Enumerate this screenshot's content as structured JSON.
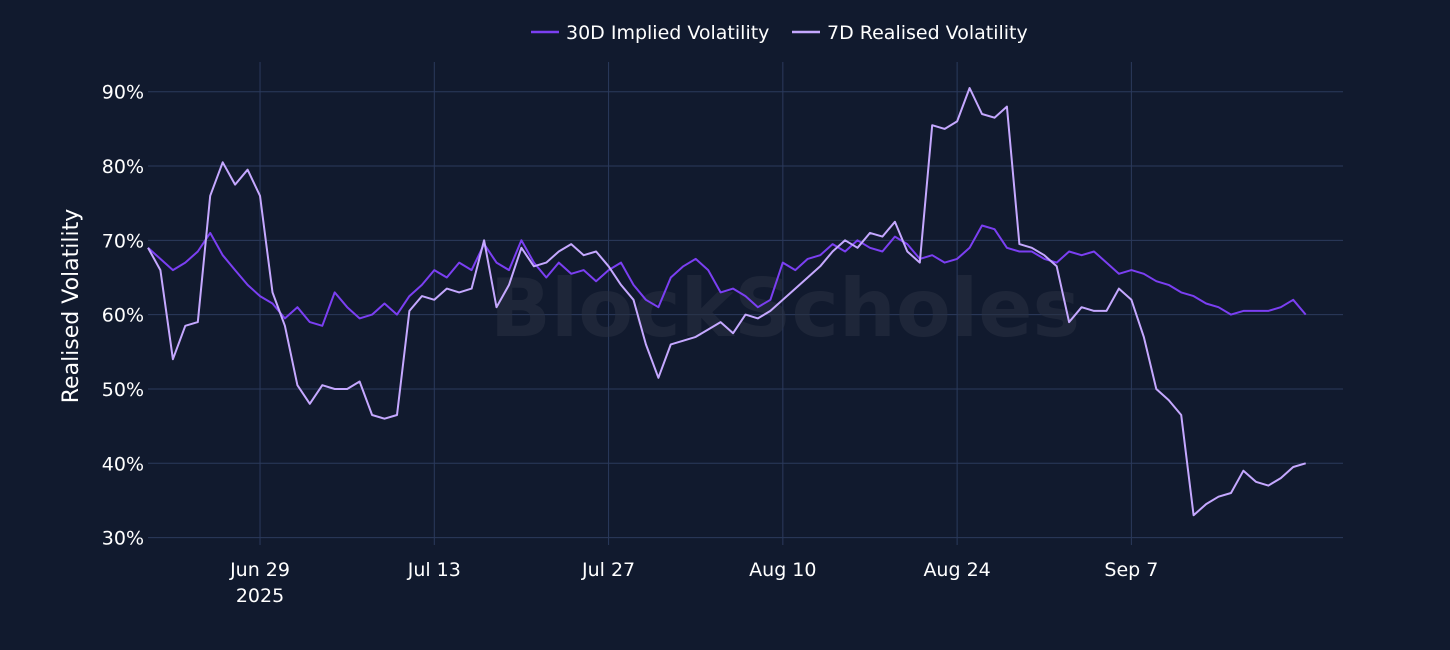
{
  "chart_data": {
    "type": "line",
    "ylabel": "Realised Volatility",
    "y_tick_labels": [
      "30%",
      "40%",
      "50%",
      "60%",
      "70%",
      "80%",
      "90%"
    ],
    "y_ticks": [
      30,
      40,
      50,
      60,
      70,
      80,
      90
    ],
    "ylim": [
      29,
      94
    ],
    "xlim": [
      "2025-06-20",
      "2025-09-24"
    ],
    "x_ticks": [
      {
        "date": "2025-06-29",
        "label": "Jun 29",
        "sublabel": "2025"
      },
      {
        "date": "2025-07-13",
        "label": "Jul 13",
        "sublabel": ""
      },
      {
        "date": "2025-07-27",
        "label": "Jul 27",
        "sublabel": ""
      },
      {
        "date": "2025-08-10",
        "label": "Aug 10",
        "sublabel": ""
      },
      {
        "date": "2025-08-24",
        "label": "Aug 24",
        "sublabel": ""
      },
      {
        "date": "2025-09-07",
        "label": "Sep 7",
        "sublabel": ""
      }
    ],
    "grid": true,
    "legend_position": "top-center",
    "watermark": "BlockScholes",
    "series": [
      {
        "name": "30D Implied Volatility",
        "color": "#7b3ff2",
        "points": [
          [
            "2025-06-20",
            69.0
          ],
          [
            "2025-06-21",
            67.5
          ],
          [
            "2025-06-22",
            66.0
          ],
          [
            "2025-06-23",
            67.0
          ],
          [
            "2025-06-24",
            68.5
          ],
          [
            "2025-06-25",
            71.0
          ],
          [
            "2025-06-26",
            68.0
          ],
          [
            "2025-06-27",
            66.0
          ],
          [
            "2025-06-28",
            64.0
          ],
          [
            "2025-06-29",
            62.5
          ],
          [
            "2025-06-30",
            61.5
          ],
          [
            "2025-07-01",
            59.5
          ],
          [
            "2025-07-02",
            61.0
          ],
          [
            "2025-07-03",
            59.0
          ],
          [
            "2025-07-04",
            58.5
          ],
          [
            "2025-07-05",
            63.0
          ],
          [
            "2025-07-06",
            61.0
          ],
          [
            "2025-07-07",
            59.5
          ],
          [
            "2025-07-08",
            60.0
          ],
          [
            "2025-07-09",
            61.5
          ],
          [
            "2025-07-10",
            60.0
          ],
          [
            "2025-07-11",
            62.5
          ],
          [
            "2025-07-12",
            64.0
          ],
          [
            "2025-07-13",
            66.0
          ],
          [
            "2025-07-14",
            65.0
          ],
          [
            "2025-07-15",
            67.0
          ],
          [
            "2025-07-16",
            66.0
          ],
          [
            "2025-07-17",
            69.5
          ],
          [
            "2025-07-18",
            67.0
          ],
          [
            "2025-07-19",
            66.0
          ],
          [
            "2025-07-20",
            70.0
          ],
          [
            "2025-07-21",
            67.0
          ],
          [
            "2025-07-22",
            65.0
          ],
          [
            "2025-07-23",
            67.0
          ],
          [
            "2025-07-24",
            65.5
          ],
          [
            "2025-07-25",
            66.0
          ],
          [
            "2025-07-26",
            64.5
          ],
          [
            "2025-07-27",
            66.0
          ],
          [
            "2025-07-28",
            67.0
          ],
          [
            "2025-07-29",
            64.0
          ],
          [
            "2025-07-30",
            62.0
          ],
          [
            "2025-07-31",
            61.0
          ],
          [
            "2025-08-01",
            65.0
          ],
          [
            "2025-08-02",
            66.5
          ],
          [
            "2025-08-03",
            67.5
          ],
          [
            "2025-08-04",
            66.0
          ],
          [
            "2025-08-05",
            63.0
          ],
          [
            "2025-08-06",
            63.5
          ],
          [
            "2025-08-07",
            62.5
          ],
          [
            "2025-08-08",
            61.0
          ],
          [
            "2025-08-09",
            62.0
          ],
          [
            "2025-08-10",
            67.0
          ],
          [
            "2025-08-11",
            66.0
          ],
          [
            "2025-08-12",
            67.5
          ],
          [
            "2025-08-13",
            68.0
          ],
          [
            "2025-08-14",
            69.5
          ],
          [
            "2025-08-15",
            68.5
          ],
          [
            "2025-08-16",
            70.0
          ],
          [
            "2025-08-17",
            69.0
          ],
          [
            "2025-08-18",
            68.5
          ],
          [
            "2025-08-19",
            70.5
          ],
          [
            "2025-08-20",
            69.5
          ],
          [
            "2025-08-21",
            67.5
          ],
          [
            "2025-08-22",
            68.0
          ],
          [
            "2025-08-23",
            67.0
          ],
          [
            "2025-08-24",
            67.5
          ],
          [
            "2025-08-25",
            69.0
          ],
          [
            "2025-08-26",
            72.0
          ],
          [
            "2025-08-27",
            71.5
          ],
          [
            "2025-08-28",
            69.0
          ],
          [
            "2025-08-29",
            68.5
          ],
          [
            "2025-08-30",
            68.5
          ],
          [
            "2025-08-31",
            67.5
          ],
          [
            "2025-09-01",
            67.0
          ],
          [
            "2025-09-02",
            68.5
          ],
          [
            "2025-09-03",
            68.0
          ],
          [
            "2025-09-04",
            68.5
          ],
          [
            "2025-09-05",
            67.0
          ],
          [
            "2025-09-06",
            65.5
          ],
          [
            "2025-09-07",
            66.0
          ],
          [
            "2025-09-08",
            65.5
          ],
          [
            "2025-09-09",
            64.5
          ],
          [
            "2025-09-10",
            64.0
          ],
          [
            "2025-09-11",
            63.0
          ],
          [
            "2025-09-12",
            62.5
          ],
          [
            "2025-09-13",
            61.5
          ],
          [
            "2025-09-14",
            61.0
          ],
          [
            "2025-09-15",
            60.0
          ],
          [
            "2025-09-16",
            60.5
          ],
          [
            "2025-09-17",
            60.5
          ],
          [
            "2025-09-18",
            60.5
          ],
          [
            "2025-09-19",
            61.0
          ],
          [
            "2025-09-20",
            62.0
          ],
          [
            "2025-09-21",
            60.0
          ]
        ]
      },
      {
        "name": "7D Realised Volatility",
        "color": "#c5a8ff",
        "points": [
          [
            "2025-06-20",
            69.0
          ],
          [
            "2025-06-21",
            66.0
          ],
          [
            "2025-06-22",
            54.0
          ],
          [
            "2025-06-23",
            58.5
          ],
          [
            "2025-06-24",
            59.0
          ],
          [
            "2025-06-25",
            76.0
          ],
          [
            "2025-06-26",
            80.5
          ],
          [
            "2025-06-27",
            77.5
          ],
          [
            "2025-06-28",
            79.5
          ],
          [
            "2025-06-29",
            76.0
          ],
          [
            "2025-06-30",
            63.0
          ],
          [
            "2025-07-01",
            58.5
          ],
          [
            "2025-07-02",
            50.5
          ],
          [
            "2025-07-03",
            48.0
          ],
          [
            "2025-07-04",
            50.5
          ],
          [
            "2025-07-05",
            50.0
          ],
          [
            "2025-07-06",
            50.0
          ],
          [
            "2025-07-07",
            51.0
          ],
          [
            "2025-07-08",
            46.5
          ],
          [
            "2025-07-09",
            46.0
          ],
          [
            "2025-07-10",
            46.5
          ],
          [
            "2025-07-11",
            60.5
          ],
          [
            "2025-07-12",
            62.5
          ],
          [
            "2025-07-13",
            62.0
          ],
          [
            "2025-07-14",
            63.5
          ],
          [
            "2025-07-15",
            63.0
          ],
          [
            "2025-07-16",
            63.5
          ],
          [
            "2025-07-17",
            70.0
          ],
          [
            "2025-07-18",
            61.0
          ],
          [
            "2025-07-19",
            64.0
          ],
          [
            "2025-07-20",
            69.0
          ],
          [
            "2025-07-21",
            66.5
          ],
          [
            "2025-07-22",
            67.0
          ],
          [
            "2025-07-23",
            68.5
          ],
          [
            "2025-07-24",
            69.5
          ],
          [
            "2025-07-25",
            68.0
          ],
          [
            "2025-07-26",
            68.5
          ],
          [
            "2025-07-27",
            66.5
          ],
          [
            "2025-07-28",
            64.0
          ],
          [
            "2025-07-29",
            62.0
          ],
          [
            "2025-07-30",
            56.0
          ],
          [
            "2025-07-31",
            51.5
          ],
          [
            "2025-08-01",
            56.0
          ],
          [
            "2025-08-02",
            56.5
          ],
          [
            "2025-08-03",
            57.0
          ],
          [
            "2025-08-04",
            58.0
          ],
          [
            "2025-08-05",
            59.0
          ],
          [
            "2025-08-06",
            57.5
          ],
          [
            "2025-08-07",
            60.0
          ],
          [
            "2025-08-08",
            59.5
          ],
          [
            "2025-08-09",
            60.5
          ],
          [
            "2025-08-10",
            62.0
          ],
          [
            "2025-08-11",
            63.5
          ],
          [
            "2025-08-12",
            65.0
          ],
          [
            "2025-08-13",
            66.5
          ],
          [
            "2025-08-14",
            68.5
          ],
          [
            "2025-08-15",
            70.0
          ],
          [
            "2025-08-16",
            69.0
          ],
          [
            "2025-08-17",
            71.0
          ],
          [
            "2025-08-18",
            70.5
          ],
          [
            "2025-08-19",
            72.5
          ],
          [
            "2025-08-20",
            68.5
          ],
          [
            "2025-08-21",
            67.0
          ],
          [
            "2025-08-22",
            85.5
          ],
          [
            "2025-08-23",
            85.0
          ],
          [
            "2025-08-24",
            86.0
          ],
          [
            "2025-08-25",
            90.5
          ],
          [
            "2025-08-26",
            87.0
          ],
          [
            "2025-08-27",
            86.5
          ],
          [
            "2025-08-28",
            88.0
          ],
          [
            "2025-08-29",
            69.5
          ],
          [
            "2025-08-30",
            69.0
          ],
          [
            "2025-08-31",
            68.0
          ],
          [
            "2025-09-01",
            66.5
          ],
          [
            "2025-09-02",
            59.0
          ],
          [
            "2025-09-03",
            61.0
          ],
          [
            "2025-09-04",
            60.5
          ],
          [
            "2025-09-05",
            60.5
          ],
          [
            "2025-09-06",
            63.5
          ],
          [
            "2025-09-07",
            62.0
          ],
          [
            "2025-09-08",
            57.0
          ],
          [
            "2025-09-09",
            50.0
          ],
          [
            "2025-09-10",
            48.5
          ],
          [
            "2025-09-11",
            46.5
          ],
          [
            "2025-09-12",
            33.0
          ],
          [
            "2025-09-13",
            34.5
          ],
          [
            "2025-09-14",
            35.5
          ],
          [
            "2025-09-15",
            36.0
          ],
          [
            "2025-09-16",
            39.0
          ],
          [
            "2025-09-17",
            37.5
          ],
          [
            "2025-09-18",
            37.0
          ],
          [
            "2025-09-19",
            38.0
          ],
          [
            "2025-09-20",
            39.5
          ],
          [
            "2025-09-21",
            40.0
          ]
        ]
      }
    ]
  }
}
